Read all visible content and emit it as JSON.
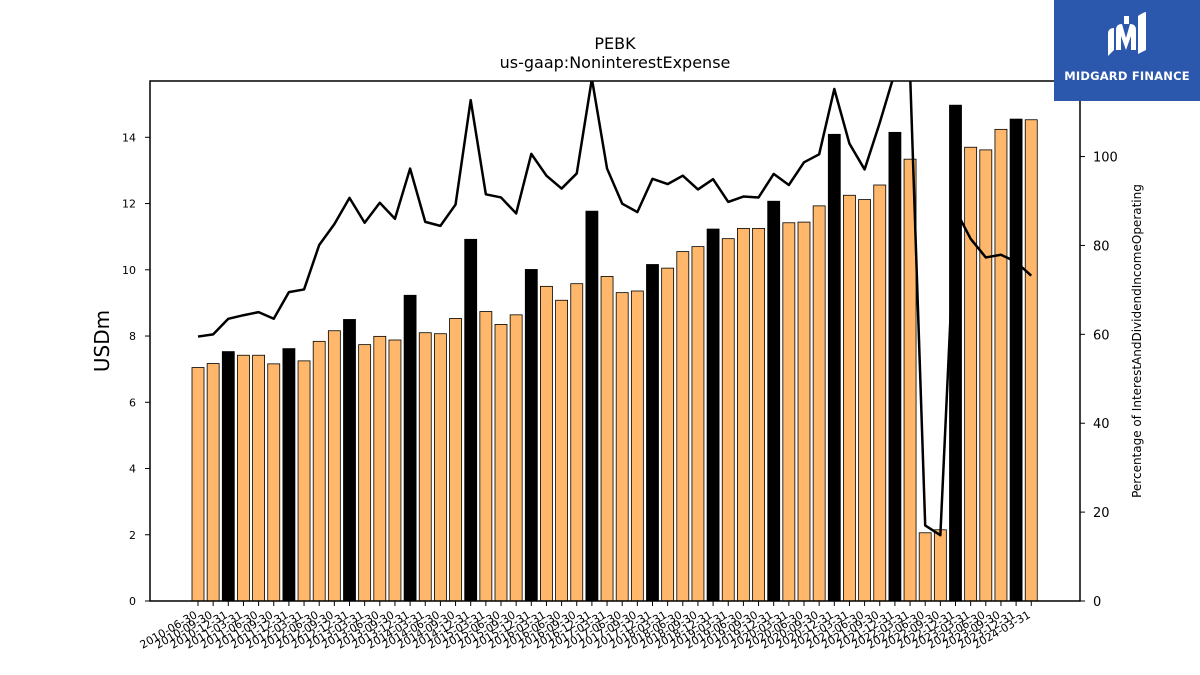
{
  "logo": {
    "text": "MIDGARD FINANCE",
    "icon": "midgard-logo-icon",
    "background": "#2b57ad"
  },
  "colors": {
    "bar_normal": "#ffb86b",
    "bar_q4": "#000000",
    "line": "#000000"
  },
  "chart_data": {
    "type": "bar",
    "title": "PEBK",
    "subtitle": "us-gaap:NoninterestExpense",
    "ylabel": "USDm",
    "y2label": "Percentage of InterestAndDividendIncomeOperating",
    "ylim": [
      0,
      15.7
    ],
    "y2lim": [
      0,
      117
    ],
    "yticks": [
      0,
      2,
      4,
      6,
      8,
      10,
      12,
      14
    ],
    "y2ticks": [
      0,
      20,
      40,
      60,
      80,
      100
    ],
    "categories": [
      "2010-06-30",
      "2010-09-30",
      "2010-12-31",
      "2011-03-31",
      "2011-06-30",
      "2011-09-30",
      "2011-12-31",
      "2012-03-31",
      "2012-06-30",
      "2012-09-30",
      "2012-12-31",
      "2013-03-31",
      "2013-06-30",
      "2013-09-30",
      "2013-12-31",
      "2014-03-31",
      "2014-06-30",
      "2014-09-30",
      "2014-12-31",
      "2015-03-31",
      "2015-06-30",
      "2015-09-30",
      "2015-12-31",
      "2016-03-31",
      "2016-06-30",
      "2016-09-30",
      "2016-12-31",
      "2017-03-31",
      "2017-06-30",
      "2017-09-30",
      "2017-12-31",
      "2018-03-31",
      "2018-06-30",
      "2018-09-30",
      "2018-12-31",
      "2019-03-31",
      "2019-06-30",
      "2019-09-30",
      "2019-12-31",
      "2020-03-31",
      "2020-06-30",
      "2020-09-30",
      "2020-12-31",
      "2021-03-31",
      "2021-06-30",
      "2021-09-30",
      "2021-12-31",
      "2022-03-31",
      "2022-06-30",
      "2022-09-30",
      "2022-12-31",
      "2023-03-31",
      "2023-06-30",
      "2023-09-30",
      "2023-12-31",
      "2024-03-31"
    ],
    "xtick_labels": [
      "2010-06-30",
      "2010-09-30",
      "2010-12-31",
      "2011-03-31",
      "2011-06-30",
      "2011-09-30",
      "2011-12-31",
      "2012-03-31",
      "2012-06-30",
      "2012-09-30",
      "2012-12-31",
      "2013-03-31",
      "2013-06-30",
      "2013-09-30",
      "2013-12-31",
      "2014-03-31",
      "2014-06-30",
      "2014-09-30",
      "2014-12-31",
      "2015-03-31",
      "2015-06-30",
      "2015-09-30",
      "2015-12-31",
      "2016-03-31",
      "2016-06-30",
      "2016-09-30",
      "2016-12-31",
      "2017-03-31",
      "2017-06-30",
      "2017-09-30",
      "2017-12-31",
      "2018-03-31",
      "2018-06-30",
      "2018-09-30",
      "2018-12-31",
      "2019-03-31",
      "2019-06-30",
      "2019-09-30",
      "2019-12-31",
      "2020-03-31",
      "2020-06-30",
      "2020-09-30",
      "2020-12-31",
      "2021-03-31",
      "2021-06-30",
      "2021-09-30",
      "2021-12-31",
      "2022-03-31",
      "2022-06-30",
      "2022-09-30",
      "2022-12-31",
      "2023-03-31",
      "2023-06-30",
      "2023-09-30",
      "2023-12-31",
      "2024-03-31"
    ],
    "series": [
      {
        "type": "bar",
        "axis": "left",
        "values": [
          7.05,
          7.17,
          7.53,
          7.42,
          7.42,
          7.16,
          7.62,
          7.25,
          7.84,
          8.16,
          8.5,
          7.74,
          7.99,
          7.88,
          9.23,
          8.1,
          8.07,
          8.53,
          10.92,
          8.74,
          8.35,
          8.64,
          10.01,
          9.5,
          9.08,
          9.58,
          11.77,
          9.8,
          9.31,
          9.36,
          10.16,
          10.05,
          10.55,
          10.7,
          11.23,
          10.94,
          11.25,
          11.25,
          12.07,
          11.42,
          11.44,
          11.93,
          14.09,
          12.25,
          12.12,
          12.56,
          14.15,
          13.34,
          2.06,
          2.15,
          14.97,
          13.7,
          13.62,
          14.24,
          14.55,
          14.53
        ],
        "highlight": [
          false,
          false,
          true,
          false,
          false,
          false,
          true,
          false,
          false,
          false,
          true,
          false,
          false,
          false,
          true,
          false,
          false,
          false,
          true,
          false,
          false,
          false,
          true,
          false,
          false,
          false,
          true,
          false,
          false,
          false,
          true,
          false,
          false,
          false,
          true,
          false,
          false,
          false,
          true,
          false,
          false,
          false,
          true,
          false,
          false,
          false,
          true,
          false,
          false,
          false,
          true,
          false,
          false,
          false,
          true,
          false
        ]
      },
      {
        "type": "line",
        "axis": "right",
        "values": [
          59.5,
          60,
          63.5,
          64.3,
          65,
          63.5,
          69.5,
          70.1,
          80.1,
          84.8,
          90.7,
          85.1,
          89.6,
          86,
          97.3,
          85.3,
          84.4,
          89.2,
          112.7,
          91.5,
          90.8,
          87.2,
          100.6,
          95.7,
          92.8,
          96.2,
          117.5,
          97.3,
          89.4,
          87.5,
          95,
          93.8,
          95.7,
          92.6,
          94.9,
          89.8,
          91,
          90.8,
          96.1,
          93.6,
          98.7,
          100.5,
          115.2,
          102.9,
          97.1,
          107.6,
          119,
          119,
          17,
          14.8,
          88,
          81.5,
          77.3,
          77.9,
          76.3,
          73.2
        ]
      }
    ],
    "grid": false,
    "legend": "none"
  }
}
